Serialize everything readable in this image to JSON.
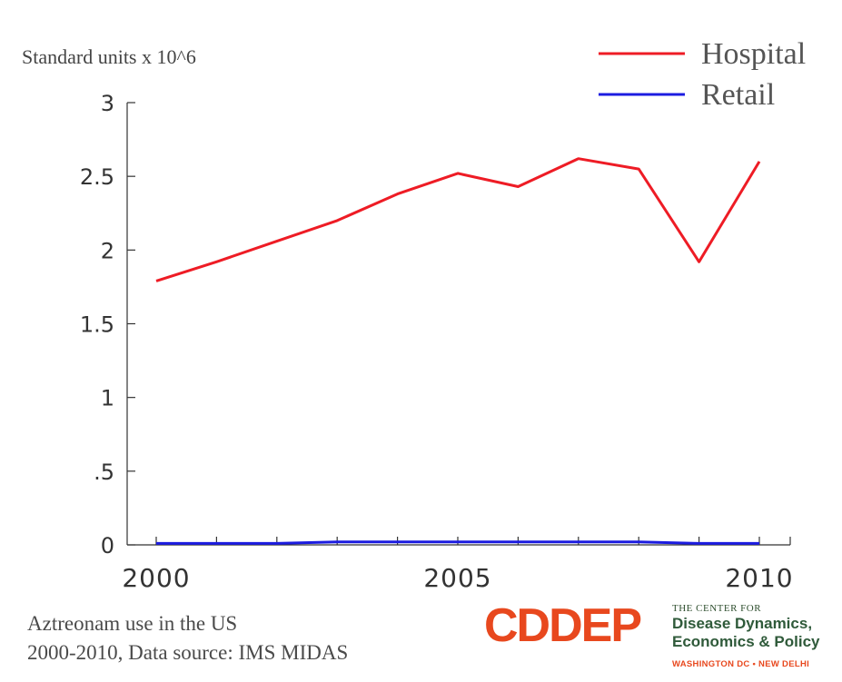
{
  "chart_data": {
    "type": "line",
    "title": "",
    "ylabel": "Standard units x 10^6",
    "xlabel": "",
    "x": [
      2000,
      2001,
      2002,
      2003,
      2004,
      2005,
      2006,
      2007,
      2008,
      2009,
      2010
    ],
    "x_ticks": [
      2000,
      2005,
      2010
    ],
    "x_tick_labels": [
      "2000",
      "2005",
      "2010"
    ],
    "ylim": [
      0,
      3
    ],
    "y_ticks": [
      0,
      0.5,
      1,
      1.5,
      2,
      2.5,
      3
    ],
    "y_tick_labels": [
      "0",
      ".5",
      "1",
      "1.5",
      "2",
      "2.5",
      "3"
    ],
    "grid": false,
    "legend_position": "top-right",
    "series": [
      {
        "name": "Hospital",
        "color": "#ee1c25",
        "values": [
          1.79,
          1.92,
          2.06,
          2.2,
          2.38,
          2.52,
          2.43,
          2.62,
          2.55,
          1.92,
          2.6
        ]
      },
      {
        "name": "Retail",
        "color": "#1c1ce0",
        "values": [
          0.01,
          0.01,
          0.01,
          0.02,
          0.02,
          0.02,
          0.02,
          0.02,
          0.02,
          0.01,
          0.01
        ]
      }
    ]
  },
  "caption": {
    "line1": "Aztreonam use in the US",
    "line2": "2000-2010, Data source: IMS MIDAS"
  },
  "logo": {
    "mark": "CDDEP",
    "small": "THE CENTER FOR",
    "line1": "Disease Dynamics,",
    "line2": "Economics & Policy",
    "location": "WASHINGTON DC • NEW DELHI",
    "mark_color": "#e8481e",
    "text_color": "#2f5a3a"
  }
}
